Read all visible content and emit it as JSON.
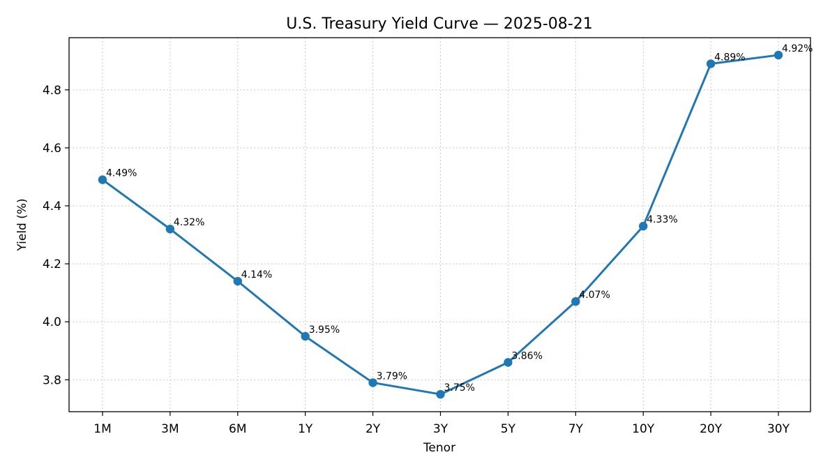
{
  "chart_data": {
    "type": "line",
    "title": "U.S. Treasury Yield Curve — 2025-08-21",
    "xlabel": "Tenor",
    "ylabel": "Yield (%)",
    "categories": [
      "1M",
      "3M",
      "6M",
      "1Y",
      "2Y",
      "3Y",
      "5Y",
      "7Y",
      "10Y",
      "20Y",
      "30Y"
    ],
    "values": [
      4.49,
      4.32,
      4.14,
      3.95,
      3.79,
      3.75,
      3.86,
      4.07,
      4.33,
      4.89,
      4.92
    ],
    "data_labels": [
      "4.49%",
      "4.32%",
      "4.14%",
      "3.95%",
      "3.79%",
      "3.75%",
      "3.86%",
      "4.07%",
      "4.33%",
      "4.89%",
      "4.92%"
    ],
    "ylim": [
      3.69,
      4.98
    ],
    "yticks": [
      3.8,
      4.0,
      4.2,
      4.4,
      4.6,
      4.8
    ],
    "ytick_labels": [
      "3.8",
      "4.0",
      "4.2",
      "4.4",
      "4.6",
      "4.8"
    ],
    "grid": true,
    "line_color": "#1f77b4",
    "marker": "circle"
  }
}
